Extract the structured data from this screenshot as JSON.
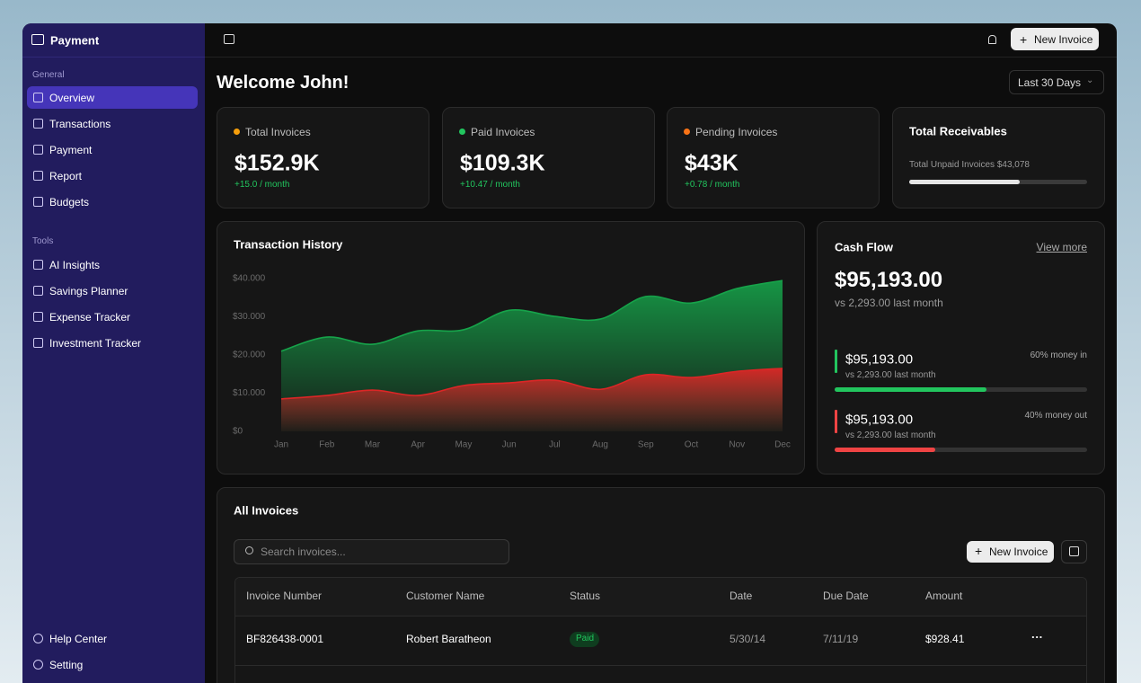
{
  "sidebar": {
    "brand": "Payment",
    "general_label": "General",
    "general": [
      "Overview",
      "Transactions",
      "Payment",
      "Report",
      "Budgets"
    ],
    "tools_label": "Tools",
    "tools": [
      "AI Insights",
      "Savings Planner",
      "Expense Tracker",
      "Investment Tracker"
    ],
    "footer": [
      "Help Center",
      "Setting"
    ]
  },
  "topbar": {
    "new_invoice": "New Invoice"
  },
  "header": {
    "welcome": "Welcome John!",
    "range": "Last 30 Days"
  },
  "stats": [
    {
      "label": "Total Invoices",
      "value": "$152.9K",
      "change": "+15.0 / month",
      "dot": "#f59e0b"
    },
    {
      "label": "Paid Invoices",
      "value": "$109.3K",
      "change": "+10.47 / month",
      "dot": "#22c55e"
    },
    {
      "label": "Pending Invoices",
      "value": "$43K",
      "change": "+0.78 / month",
      "dot": "#f97316"
    }
  ],
  "receivables": {
    "title": "Total Receivables",
    "note": "Total Unpaid Invoices $43,078",
    "progress": 62
  },
  "chart_data": {
    "type": "area",
    "title": "Transaction History",
    "categories": [
      "Jan",
      "Feb",
      "Mar",
      "Apr",
      "May",
      "Jun",
      "Jul",
      "Aug",
      "Sep",
      "Oct",
      "Nov",
      "Dec"
    ],
    "series": [
      {
        "color": "#16a34a",
        "values": [
          21000,
          24700,
          22800,
          26300,
          26600,
          31700,
          30100,
          29400,
          35300,
          33600,
          37400,
          39500
        ]
      },
      {
        "color": "#dc2626",
        "values": [
          8500,
          9400,
          10800,
          9400,
          12000,
          12700,
          13400,
          11000,
          14800,
          14100,
          15700,
          16500
        ]
      }
    ],
    "ylim": [
      0,
      40000
    ],
    "yticks": [
      {
        "value": 40000,
        "label": "$40.000"
      },
      {
        "value": 30000,
        "label": "$30.000"
      },
      {
        "value": 20000,
        "label": "$20.000"
      },
      {
        "value": 10000,
        "label": "$10.000"
      },
      {
        "value": 0,
        "label": "$0"
      }
    ],
    "grid": false
  },
  "cash_flow": {
    "title": "Cash Flow",
    "link": "View more",
    "total": "$95,193.00",
    "total_note": "vs 2,293.00 last month",
    "items": [
      {
        "amount": "$95,193.00",
        "note": "vs 2,293.00 last month",
        "share": {
          "value": 60,
          "label": "60% money in"
        },
        "color": "#22c55e"
      },
      {
        "amount": "$95,193.00",
        "note": "vs 2,293.00 last month",
        "share": {
          "value": 40,
          "label": "40% money out"
        },
        "color": "#ef4444"
      }
    ]
  },
  "invoices": {
    "title": "All Invoices",
    "search_placeholder": "Search invoices...",
    "new_invoice": "New Invoice",
    "columns": [
      "Invoice Number",
      "Customer Name",
      "Status",
      "Date",
      "Due Date",
      "Amount"
    ],
    "rows": [
      [
        "BF826438-0001",
        "Robert Baratheon",
        "Paid",
        "5/30/14",
        "7/11/19",
        "$928.41"
      ]
    ]
  }
}
